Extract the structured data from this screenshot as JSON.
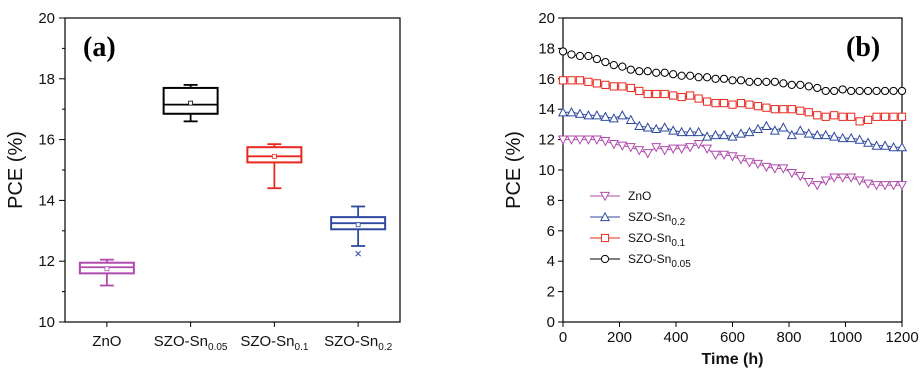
{
  "panels": {
    "a_label": "(a)",
    "b_label": "(b)"
  },
  "chart_data": [
    {
      "type": "box",
      "panel": "(a)",
      "ylabel": "PCE (%)",
      "xlabel": "",
      "ylim": [
        10,
        20
      ],
      "yticks": [
        10,
        12,
        14,
        16,
        18,
        20
      ],
      "categories": [
        {
          "base": "ZnO",
          "sub": ""
        },
        {
          "base": "SZO-Sn",
          "sub": "0.05"
        },
        {
          "base": "SZO-Sn",
          "sub": "0.1"
        },
        {
          "base": "SZO-Sn",
          "sub": "0.2"
        }
      ],
      "boxes": [
        {
          "color": "#b04aae",
          "min": 11.2,
          "q1": 11.6,
          "median": 11.8,
          "mean": 11.75,
          "q3": 11.95,
          "max": 12.05,
          "outliers": []
        },
        {
          "color": "#000000",
          "min": 16.6,
          "q1": 16.85,
          "median": 17.15,
          "mean": 17.2,
          "q3": 17.7,
          "max": 17.8,
          "outliers": []
        },
        {
          "color": "#e8281e",
          "min": 14.4,
          "q1": 15.25,
          "median": 15.45,
          "mean": 15.45,
          "q3": 15.75,
          "max": 15.85,
          "outliers": []
        },
        {
          "color": "#2f4aa0",
          "min": 12.5,
          "q1": 13.05,
          "median": 13.25,
          "mean": 13.2,
          "q3": 13.45,
          "max": 13.8,
          "outliers": [
            12.25
          ]
        }
      ]
    },
    {
      "type": "line",
      "panel": "(b)",
      "xlabel": "Time (h)",
      "ylabel": "PCE (%)",
      "xlim": [
        0,
        1200
      ],
      "ylim": [
        0,
        20
      ],
      "xticks": [
        0,
        200,
        400,
        600,
        800,
        1000,
        1200
      ],
      "yticks": [
        0,
        2,
        4,
        6,
        8,
        10,
        12,
        14,
        16,
        18,
        20
      ],
      "legend_position": "left-middle",
      "series": [
        {
          "name": "ZnO",
          "name_sub": "",
          "marker": "triangle-down",
          "color": "#b04aae",
          "x": [
            0,
            30,
            60,
            90,
            120,
            150,
            180,
            210,
            240,
            270,
            300,
            330,
            360,
            390,
            420,
            450,
            480,
            510,
            540,
            570,
            600,
            630,
            660,
            690,
            720,
            750,
            780,
            810,
            840,
            870,
            900,
            930,
            960,
            990,
            1020,
            1050,
            1080,
            1110,
            1140,
            1170,
            1200
          ],
          "y": [
            12.0,
            12.0,
            12.0,
            12.0,
            12.0,
            11.9,
            11.7,
            11.6,
            11.5,
            11.3,
            11.1,
            11.5,
            11.3,
            11.4,
            11.4,
            11.5,
            11.7,
            11.4,
            11.0,
            11.0,
            10.9,
            10.7,
            10.5,
            10.4,
            10.2,
            10.1,
            10.1,
            9.8,
            9.6,
            9.2,
            9.0,
            9.3,
            9.5,
            9.5,
            9.5,
            9.3,
            9.1,
            9.0,
            9.0,
            9.0,
            9.0
          ]
        },
        {
          "name": "SZO-Sn",
          "name_sub": "0.2",
          "marker": "triangle-up",
          "color": "#2f4aa0",
          "x": [
            0,
            30,
            60,
            90,
            120,
            150,
            180,
            210,
            240,
            270,
            300,
            330,
            360,
            390,
            420,
            450,
            480,
            510,
            540,
            570,
            600,
            630,
            660,
            690,
            720,
            750,
            780,
            810,
            840,
            870,
            900,
            930,
            960,
            990,
            1020,
            1050,
            1080,
            1110,
            1140,
            1170,
            1200
          ],
          "y": [
            13.8,
            13.8,
            13.7,
            13.6,
            13.6,
            13.5,
            13.4,
            13.6,
            13.3,
            12.9,
            12.8,
            12.7,
            12.8,
            12.6,
            12.5,
            12.5,
            12.5,
            12.2,
            12.3,
            12.3,
            12.2,
            12.4,
            12.5,
            12.7,
            12.9,
            12.6,
            12.8,
            12.3,
            12.6,
            12.4,
            12.3,
            12.3,
            12.2,
            12.1,
            12.1,
            12.0,
            11.8,
            11.6,
            11.6,
            11.5,
            11.5
          ]
        },
        {
          "name": "SZO-Sn",
          "name_sub": "0.1",
          "marker": "square",
          "color": "#e8281e",
          "x": [
            0,
            30,
            60,
            90,
            120,
            150,
            180,
            210,
            240,
            270,
            300,
            330,
            360,
            390,
            420,
            450,
            480,
            510,
            540,
            570,
            600,
            630,
            660,
            690,
            720,
            750,
            780,
            810,
            840,
            870,
            900,
            930,
            960,
            990,
            1020,
            1050,
            1080,
            1110,
            1140,
            1170,
            1200
          ],
          "y": [
            15.9,
            15.9,
            15.9,
            15.8,
            15.7,
            15.6,
            15.5,
            15.5,
            15.4,
            15.2,
            15.0,
            15.0,
            15.0,
            14.9,
            14.8,
            14.9,
            14.7,
            14.5,
            14.4,
            14.4,
            14.3,
            14.4,
            14.3,
            14.2,
            14.1,
            14.0,
            14.0,
            14.0,
            13.9,
            13.8,
            13.6,
            13.5,
            13.6,
            13.5,
            13.5,
            13.2,
            13.3,
            13.5,
            13.5,
            13.5,
            13.5
          ]
        },
        {
          "name": "SZO-Sn",
          "name_sub": "0.05",
          "marker": "circle",
          "color": "#000000",
          "x": [
            0,
            30,
            60,
            90,
            120,
            150,
            180,
            210,
            240,
            270,
            300,
            330,
            360,
            390,
            420,
            450,
            480,
            510,
            540,
            570,
            600,
            630,
            660,
            690,
            720,
            750,
            780,
            810,
            840,
            870,
            900,
            930,
            960,
            990,
            1020,
            1050,
            1080,
            1110,
            1140,
            1170,
            1200
          ],
          "y": [
            17.8,
            17.6,
            17.5,
            17.5,
            17.3,
            17.1,
            16.9,
            16.8,
            16.6,
            16.5,
            16.5,
            16.4,
            16.4,
            16.3,
            16.2,
            16.2,
            16.1,
            16.1,
            16.0,
            16.0,
            15.9,
            15.9,
            15.8,
            15.8,
            15.8,
            15.8,
            15.7,
            15.6,
            15.6,
            15.5,
            15.4,
            15.2,
            15.2,
            15.3,
            15.2,
            15.2,
            15.2,
            15.2,
            15.2,
            15.2,
            15.2
          ]
        }
      ]
    }
  ]
}
